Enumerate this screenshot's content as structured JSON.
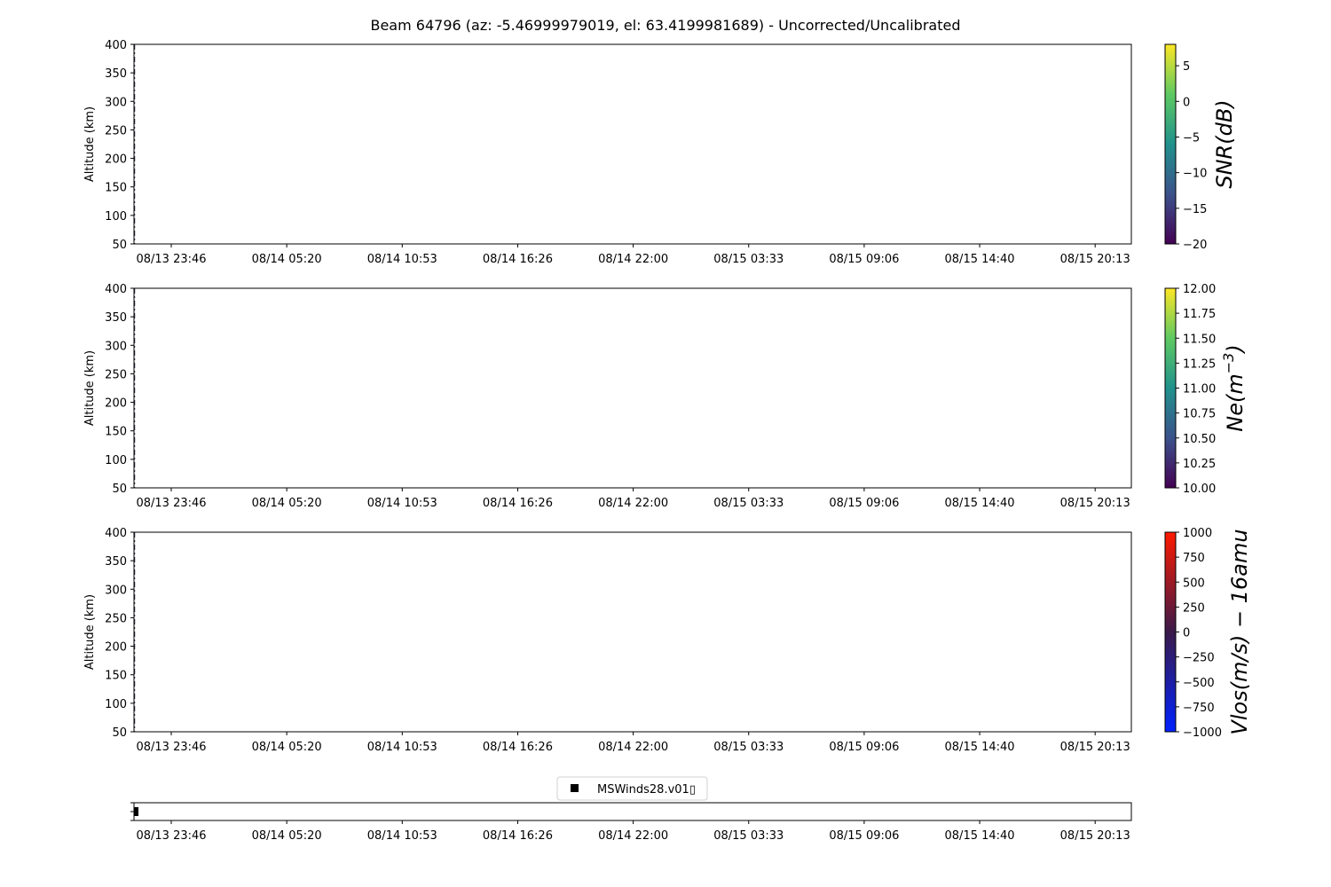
{
  "chart_data": {
    "type": "heatmap",
    "title": "Beam 64796 (az: -5.46999979019, el: 63.4199981689) - Uncorrected/Uncalibrated",
    "x_tick_labels": [
      "08/13 23:46",
      "08/14 05:20",
      "08/14 10:53",
      "08/14 16:26",
      "08/14 22:00",
      "08/15 03:33",
      "08/15 09:06",
      "08/15 14:40",
      "08/15 20:13"
    ],
    "grid": false,
    "panels": [
      {
        "ylabel": "Altitude (km)",
        "ylim": [
          50,
          400
        ],
        "y_ticks": [
          50,
          100,
          150,
          200,
          250,
          300,
          350,
          400
        ],
        "colorbar": {
          "label": "SNR(dB)",
          "range": [
            -20,
            8
          ],
          "ticks": [
            "−20",
            "−15",
            "−10",
            "−5",
            "0",
            "5"
          ],
          "tick_values": [
            -20,
            -15,
            -10,
            -5,
            0,
            5
          ],
          "colormap": "viridis"
        }
      },
      {
        "ylabel": "Altitude (km)",
        "ylim": [
          50,
          400
        ],
        "y_ticks": [
          50,
          100,
          150,
          200,
          250,
          300,
          350,
          400
        ],
        "colorbar": {
          "label": "Ne(m",
          "label_sup": "−3",
          "label_end": ")",
          "range": [
            10,
            12
          ],
          "ticks": [
            "10.00",
            "10.25",
            "10.50",
            "10.75",
            "11.00",
            "11.25",
            "11.50",
            "11.75",
            "12.00"
          ],
          "tick_values": [
            10,
            10.25,
            10.5,
            10.75,
            11,
            11.25,
            11.5,
            11.75,
            12
          ],
          "colormap": "viridis"
        }
      },
      {
        "ylabel": "Altitude (km)",
        "ylim": [
          50,
          400
        ],
        "y_ticks": [
          50,
          100,
          150,
          200,
          250,
          300,
          350,
          400
        ],
        "colorbar": {
          "label": "Vlos(m/s) − 16amu",
          "range": [
            -1000,
            1000
          ],
          "ticks": [
            "−1000",
            "−750",
            "−500",
            "−250",
            "0",
            "250",
            "500",
            "750",
            "1000"
          ],
          "tick_values": [
            -1000,
            -750,
            -500,
            -250,
            0,
            250,
            500,
            750,
            1000
          ],
          "colors": [
            "#0022ff",
            "#3a1a4a",
            "#ff1a00"
          ]
        }
      }
    ],
    "marker_panel": {
      "legend": {
        "label": "MSWinds28.v01▯",
        "marker": "square",
        "color": "#000000",
        "placement": "top-center"
      }
    }
  }
}
